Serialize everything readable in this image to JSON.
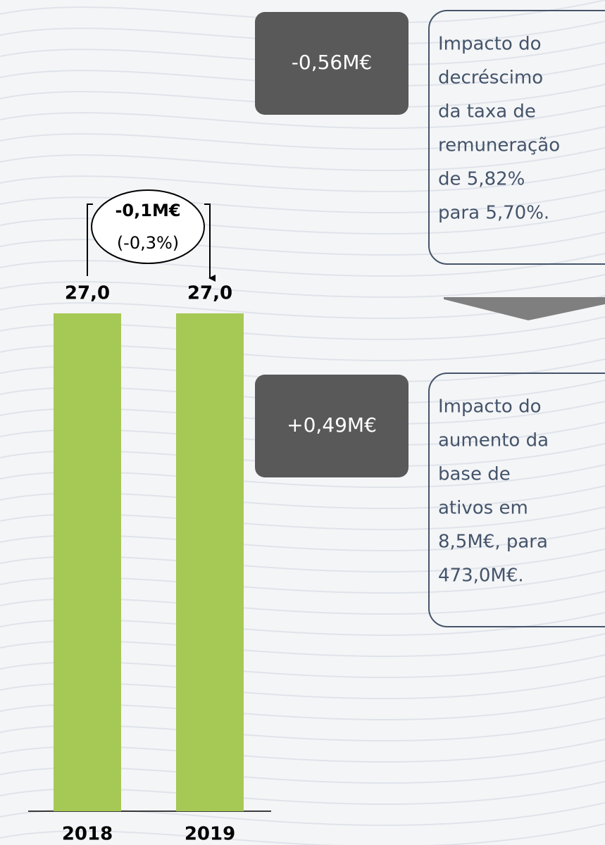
{
  "chart_data": {
    "type": "bar",
    "categories": [
      "2018",
      "2019"
    ],
    "values": [
      27.0,
      27.0
    ],
    "value_labels": [
      "27,0",
      "27,0"
    ],
    "color": "#a6c955",
    "change": {
      "amount": "-0,1M€",
      "percent": "(-0,3%)"
    },
    "callouts": [
      {
        "amount": "-0,56M€",
        "lines": [
          "Impacto do",
          "decréscimo",
          "da taxa de",
          "remuneração",
          "de 5,82%",
          "para 5,70%."
        ]
      },
      {
        "amount": "+0,49M€",
        "lines": [
          "Impacto do",
          "aumento da",
          "base de",
          "ativos em",
          "8,5M€, para",
          "473,0M€."
        ]
      }
    ]
  }
}
